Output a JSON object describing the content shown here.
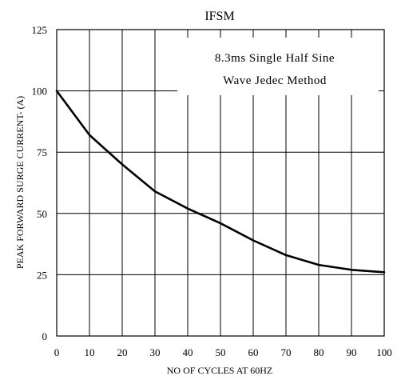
{
  "chart_data": {
    "type": "line",
    "title": "IFSM",
    "xlabel": "NO OF CYCLES AT 60HZ",
    "ylabel": "PEAK FORWARD SURGE CURRENT- (A)",
    "xlim": [
      0,
      100
    ],
    "ylim": [
      0,
      125
    ],
    "x_ticks": [
      0,
      10,
      20,
      30,
      40,
      50,
      60,
      70,
      80,
      90,
      100
    ],
    "y_ticks": [
      0,
      25,
      50,
      75,
      100,
      125
    ],
    "grid": true,
    "annotation": [
      "8.3ms Single Half Sine",
      "Wave Jedec Method"
    ],
    "series": [
      {
        "x": [
          0,
          10,
          20,
          30,
          40,
          50,
          60,
          70,
          80,
          90,
          100
        ],
        "values": [
          100,
          82,
          70,
          59,
          52,
          46,
          39,
          33,
          29,
          27,
          26
        ]
      }
    ]
  }
}
